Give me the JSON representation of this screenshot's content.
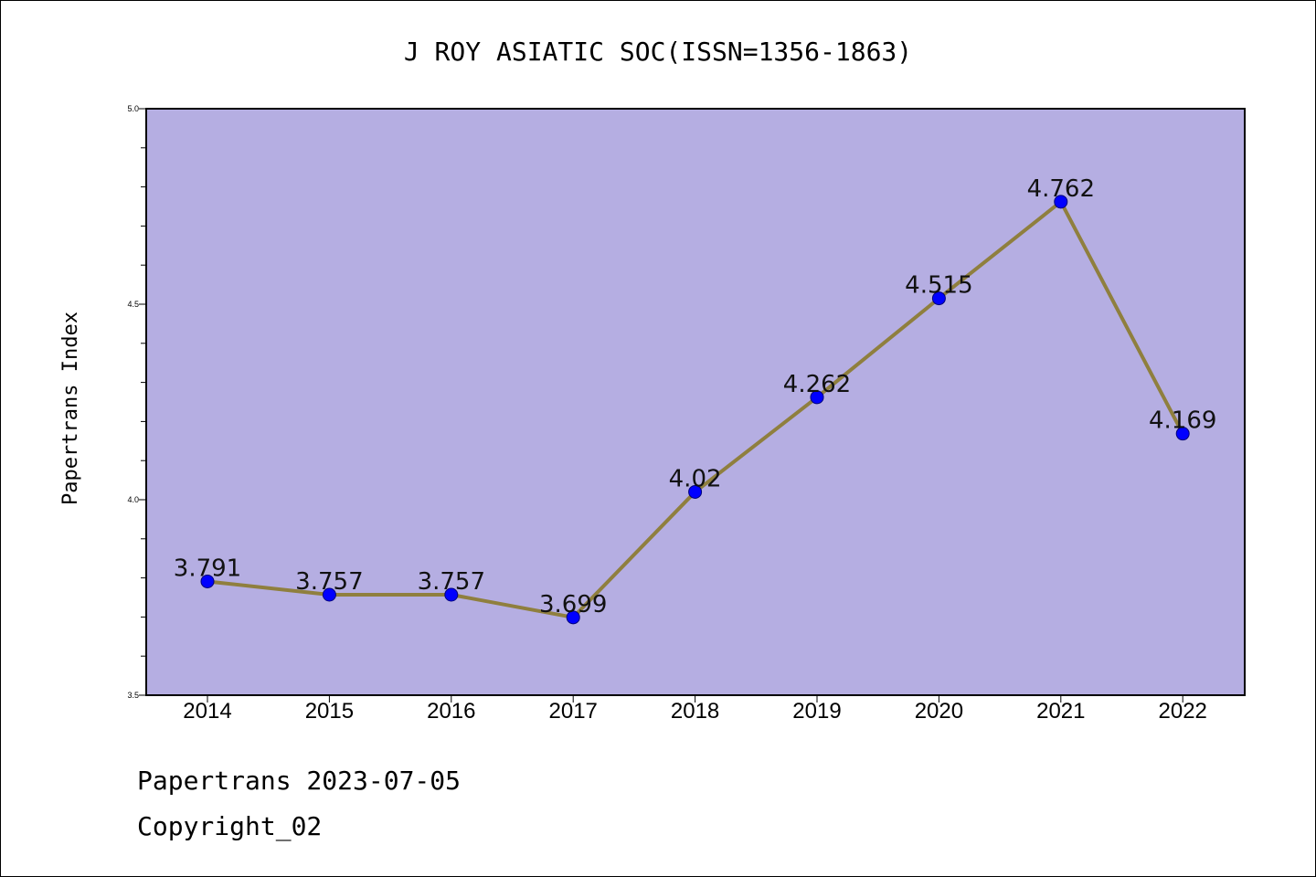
{
  "chart_data": {
    "type": "line",
    "title": "J ROY ASIATIC SOC(ISSN=1356-1863)",
    "xlabel": "",
    "ylabel": "Papertrans Index",
    "categories": [
      "2014",
      "2015",
      "2016",
      "2017",
      "2018",
      "2019",
      "2020",
      "2021",
      "2022"
    ],
    "values": [
      3.791,
      3.757,
      3.757,
      3.699,
      4.02,
      4.262,
      4.515,
      4.762,
      4.169
    ],
    "data_labels": [
      "3.791",
      "3.757",
      "3.757",
      "3.699",
      "4.02",
      "4.262",
      "4.515",
      "4.762",
      "4.169"
    ],
    "ylim": [
      3.5,
      5.0
    ],
    "yticks": [
      "3.5",
      "4.0",
      "4.5",
      "5.0"
    ],
    "grid": false,
    "colors": {
      "plot_background": "#b5aee2",
      "line": "#8f7f3e",
      "marker": "#0000ff"
    }
  },
  "footer": {
    "line1": "Papertrans 2023-07-05",
    "line2": "Copyright_02"
  }
}
